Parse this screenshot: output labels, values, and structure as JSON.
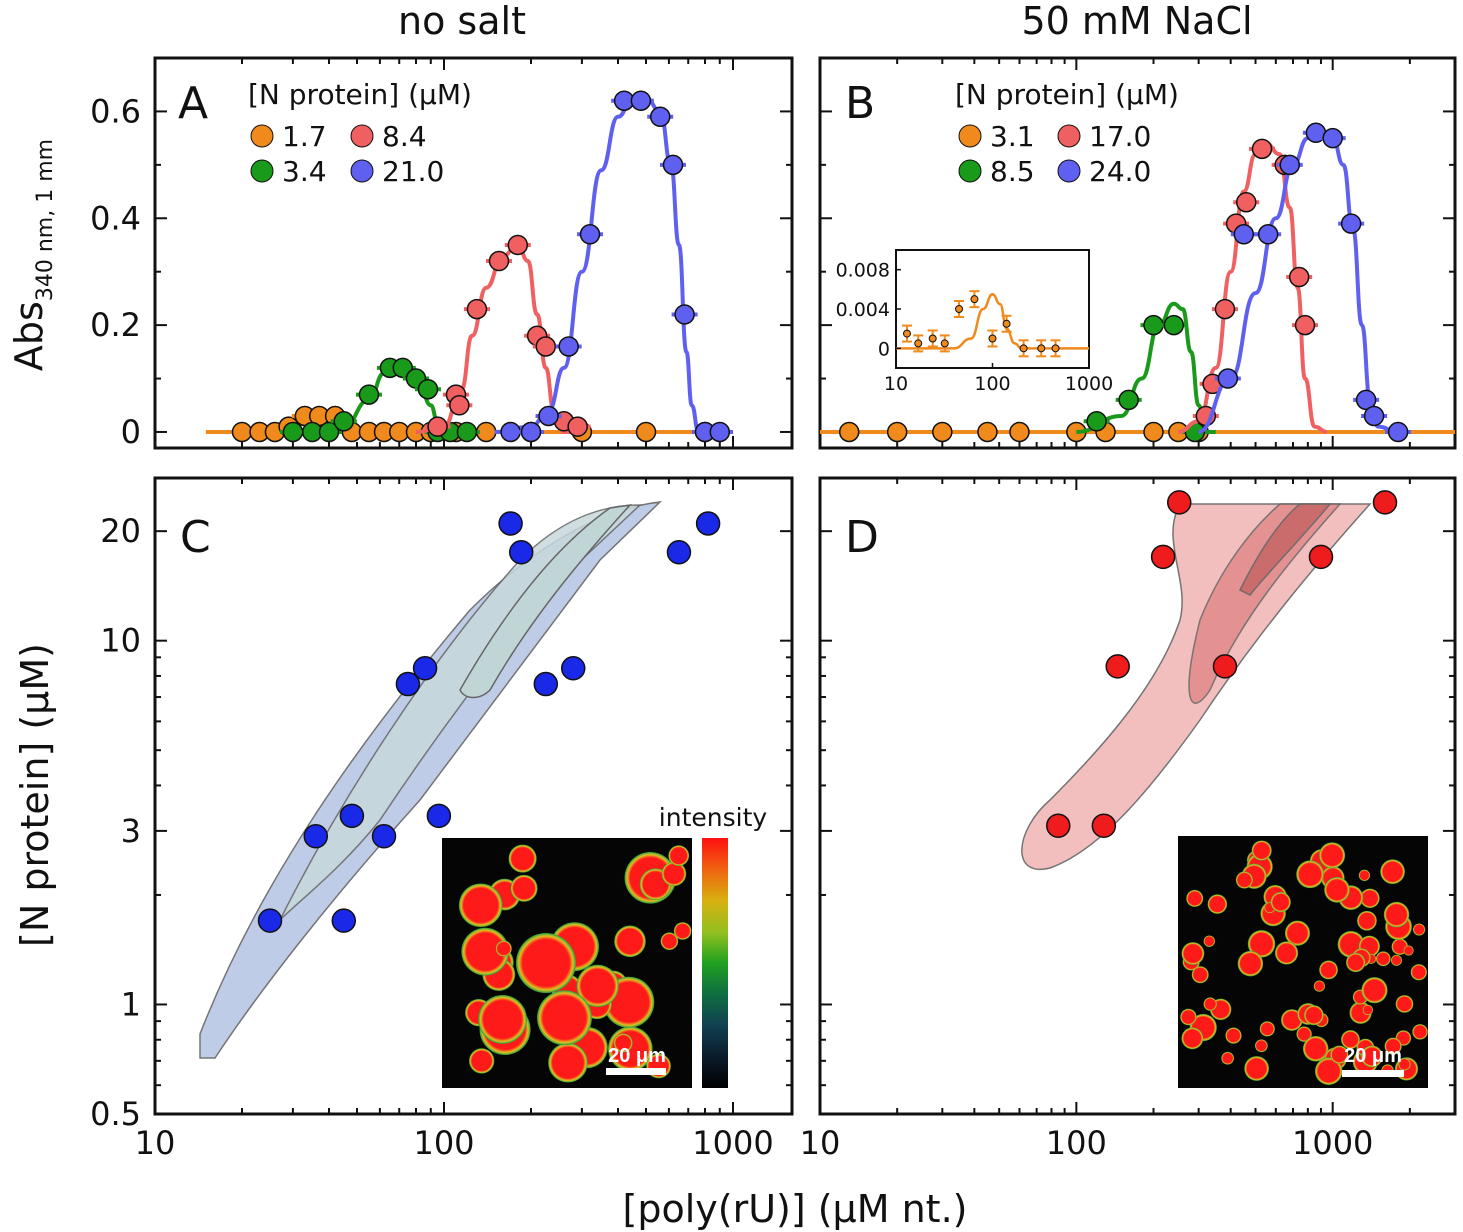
{
  "figure": {
    "col_titles": [
      "no salt",
      "50 mM NaCl"
    ],
    "ylabel_top_main": "Abs",
    "ylabel_top_sub": "340 nm, 1 mm",
    "ylabel_bottom": "[N protein] (μM)",
    "xlabel": "[poly(rU)] (μM nt.)",
    "panel_letters": [
      "A",
      "B",
      "C",
      "D"
    ],
    "legend_title": "[N protein] (μM)",
    "colorbar_label": "intensity",
    "scalebar_label": "20 μm",
    "colors": {
      "orange": "#f08a1c",
      "green": "#1a9a1a",
      "red": "#f06060",
      "blue": "#6060f0",
      "dot_blue": "#1a28e8",
      "dot_red": "#ee1c1c",
      "band_blue": "#b9c7e6",
      "band_red": "#f0b0b0"
    }
  },
  "chart_data": [
    {
      "panel": "A",
      "type": "scatter",
      "x_scale": "log",
      "xlim": [
        10,
        1600
      ],
      "ylim": [
        -0.03,
        0.7
      ],
      "yticks": [
        0,
        0.2,
        0.4,
        0.6
      ],
      "ytick_labels": [
        "0",
        "0.2",
        "0.4",
        "0.6"
      ],
      "legend_title": "[N protein] (μM)",
      "series": [
        {
          "name": "1.7",
          "color": "#f08a1c",
          "x": [
            20,
            23,
            26,
            29,
            33,
            37,
            42,
            48,
            55,
            62,
            70,
            80,
            90,
            110,
            140,
            200,
            300,
            500,
            800
          ],
          "y": [
            0.0,
            0.0,
            0.0,
            0.01,
            0.03,
            0.03,
            0.03,
            0.0,
            0.0,
            0.0,
            0.0,
            0.0,
            0.0,
            0.0,
            0.0,
            0.0,
            0.0,
            0.0,
            0.0
          ],
          "curve_x": [
            15,
            1000
          ],
          "curve_y": [
            0.0,
            0.0
          ]
        },
        {
          "name": "3.4",
          "color": "#1a9a1a",
          "x": [
            30,
            35,
            40,
            45,
            55,
            65,
            72,
            80,
            88,
            95,
            105,
            120
          ],
          "y": [
            0.0,
            0.0,
            0.0,
            0.02,
            0.07,
            0.12,
            0.12,
            0.1,
            0.08,
            0.0,
            0.0,
            0.0
          ],
          "curve_x": [
            30,
            45,
            55,
            62,
            68,
            75,
            82,
            90,
            95,
            100,
            120
          ],
          "curve_y": [
            0.0,
            0.01,
            0.06,
            0.11,
            0.125,
            0.115,
            0.09,
            0.05,
            0.02,
            0.0,
            0.0
          ]
        },
        {
          "name": "8.4",
          "color": "#f06060",
          "x": [
            95,
            110,
            113,
            130,
            155,
            180,
            210,
            225,
            260,
            290
          ],
          "y": [
            0.01,
            0.07,
            0.05,
            0.23,
            0.32,
            0.35,
            0.18,
            0.16,
            0.02,
            0.01
          ],
          "curve_x": [
            80,
            100,
            115,
            125,
            140,
            160,
            180,
            195,
            210,
            225,
            240,
            260,
            300
          ],
          "curve_y": [
            0.0,
            0.01,
            0.08,
            0.18,
            0.27,
            0.33,
            0.35,
            0.32,
            0.22,
            0.12,
            0.04,
            0.0,
            0.0
          ]
        },
        {
          "name": "21.0",
          "color": "#6060f0",
          "x": [
            170,
            200,
            230,
            270,
            320,
            420,
            480,
            560,
            620,
            680,
            800,
            900
          ],
          "y": [
            0.0,
            0.0,
            0.03,
            0.16,
            0.37,
            0.62,
            0.62,
            0.59,
            0.5,
            0.22,
            0.0,
            0.0
          ],
          "curve_x": [
            150,
            200,
            230,
            260,
            300,
            350,
            400,
            450,
            500,
            560,
            610,
            650,
            690,
            720,
            760,
            1000
          ],
          "curve_y": [
            0.0,
            0.01,
            0.04,
            0.12,
            0.3,
            0.49,
            0.59,
            0.625,
            0.625,
            0.6,
            0.5,
            0.35,
            0.15,
            0.05,
            0.0,
            0.0
          ]
        }
      ]
    },
    {
      "panel": "B",
      "type": "scatter",
      "x_scale": "log",
      "xlim": [
        10,
        3000
      ],
      "ylim": [
        -0.03,
        0.7
      ],
      "yticks": [
        0,
        0.2,
        0.4,
        0.6
      ],
      "legend_title": "[N protein] (μM)",
      "series": [
        {
          "name": "3.1",
          "color": "#f08a1c",
          "x": [
            13,
            20,
            30,
            45,
            60,
            100,
            130,
            200,
            250,
            300
          ],
          "y": [
            0,
            0,
            0,
            0,
            0,
            0,
            0,
            0,
            0,
            0
          ],
          "curve_x": [
            10,
            3000
          ],
          "curve_y": [
            0,
            0
          ]
        },
        {
          "name": "8.5",
          "color": "#1a9a1a",
          "x": [
            120,
            160,
            200,
            240,
            290
          ],
          "y": [
            0.02,
            0.06,
            0.2,
            0.2,
            0.0
          ],
          "curve_x": [
            100,
            150,
            180,
            210,
            240,
            260,
            280,
            300,
            320,
            350
          ],
          "curve_y": [
            0.0,
            0.03,
            0.1,
            0.2,
            0.24,
            0.23,
            0.15,
            0.05,
            0.0,
            0.0
          ]
        },
        {
          "name": "17.0",
          "color": "#f06060",
          "x": [
            320,
            340,
            380,
            420,
            460,
            530,
            650,
            740,
            780
          ],
          "y": [
            0.03,
            0.09,
            0.23,
            0.39,
            0.43,
            0.53,
            0.5,
            0.29,
            0.2
          ],
          "curve_x": [
            250,
            300,
            350,
            400,
            450,
            500,
            550,
            620,
            680,
            730,
            780,
            850,
            950
          ],
          "curve_y": [
            0.0,
            0.02,
            0.12,
            0.3,
            0.45,
            0.52,
            0.54,
            0.52,
            0.42,
            0.27,
            0.1,
            0.01,
            0.0
          ]
        },
        {
          "name": "24.0",
          "color": "#6060f0",
          "x": [
            390,
            450,
            560,
            680,
            860,
            1000,
            1180,
            1350,
            1450,
            1800
          ],
          "y": [
            0.1,
            0.37,
            0.37,
            0.5,
            0.56,
            0.55,
            0.39,
            0.06,
            0.03,
            0.0
          ],
          "curve_x": [
            300,
            400,
            500,
            600,
            700,
            800,
            900,
            1000,
            1100,
            1200,
            1300,
            1400,
            1500,
            1800
          ],
          "curve_y": [
            0.0,
            0.1,
            0.26,
            0.4,
            0.5,
            0.55,
            0.56,
            0.55,
            0.5,
            0.38,
            0.2,
            0.06,
            0.01,
            0.0
          ]
        }
      ],
      "inset": {
        "type": "scatter",
        "x_scale": "log",
        "xlim": [
          10,
          1000
        ],
        "ylim": [
          -0.002,
          0.01
        ],
        "yticks": [
          0,
          0.004,
          0.008
        ],
        "ytick_labels": [
          "0",
          "0.004",
          "0.008"
        ],
        "xtick_labels": [
          "10",
          "100",
          "1000"
        ],
        "x": [
          13,
          17,
          24,
          32,
          45,
          65,
          100,
          140,
          210,
          320,
          450
        ],
        "y": [
          0.0015,
          0.0005,
          0.001,
          0.0005,
          0.004,
          0.005,
          0.001,
          0.0025,
          0.0,
          0.0,
          0.0
        ],
        "curve_x": [
          10,
          40,
          60,
          80,
          100,
          120,
          140,
          170,
          200,
          1000
        ],
        "curve_y": [
          0.0,
          0.0,
          0.001,
          0.004,
          0.0055,
          0.0045,
          0.002,
          0.0005,
          0.0,
          0.0
        ]
      }
    },
    {
      "panel": "C",
      "type": "scatter",
      "x_scale": "log",
      "y_scale": "log",
      "xlim": [
        10,
        1600
      ],
      "ylim": [
        0.5,
        28
      ],
      "yticks": [
        0.5,
        1,
        3,
        10,
        20
      ],
      "ytick_labels": [
        "0.5",
        "1",
        "3",
        "10",
        "20"
      ],
      "points": [
        {
          "x": 25,
          "y": 1.7
        },
        {
          "x": 36,
          "y": 2.9
        },
        {
          "x": 45,
          "y": 1.7
        },
        {
          "x": 48,
          "y": 3.3
        },
        {
          "x": 62,
          "y": 2.9
        },
        {
          "x": 75,
          "y": 7.6
        },
        {
          "x": 86,
          "y": 8.4
        },
        {
          "x": 96,
          "y": 3.3
        },
        {
          "x": 170,
          "y": 21
        },
        {
          "x": 185,
          "y": 17.5
        },
        {
          "x": 225,
          "y": 7.6
        },
        {
          "x": 280,
          "y": 8.4
        },
        {
          "x": 650,
          "y": 17.5
        },
        {
          "x": 820,
          "y": 21
        }
      ]
    },
    {
      "panel": "D",
      "type": "scatter",
      "x_scale": "log",
      "y_scale": "log",
      "xlim": [
        10,
        3000
      ],
      "ylim": [
        0.5,
        28
      ],
      "points": [
        {
          "x": 85,
          "y": 3.1
        },
        {
          "x": 128,
          "y": 3.1
        },
        {
          "x": 145,
          "y": 8.5
        },
        {
          "x": 218,
          "y": 17
        },
        {
          "x": 252,
          "y": 24
        },
        {
          "x": 380,
          "y": 8.5
        },
        {
          "x": 900,
          "y": 17
        },
        {
          "x": 1600,
          "y": 24
        }
      ]
    }
  ],
  "x_tick_labels_left": [
    "10",
    "100",
    "1000"
  ],
  "x_tick_labels_right": [
    "10",
    "100",
    "1000"
  ]
}
